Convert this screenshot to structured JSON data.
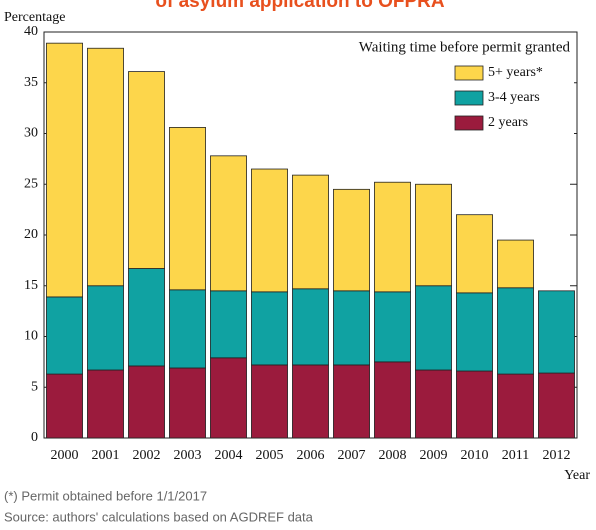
{
  "chart_data": {
    "type": "stacked_bar",
    "title": "of asylum application to OFPRA",
    "y_label": "Percentage",
    "x_label": "Year",
    "legend_title": "Waiting time before permit granted",
    "categories": [
      "2000",
      "2001",
      "2002",
      "2003",
      "2004",
      "2005",
      "2006",
      "2007",
      "2008",
      "2009",
      "2010",
      "2011",
      "2012"
    ],
    "series": [
      {
        "name": "2 years",
        "color": "#9b1b3d",
        "values": [
          6.3,
          6.7,
          7.1,
          6.9,
          7.9,
          7.2,
          7.2,
          7.2,
          7.5,
          6.7,
          6.6,
          6.3,
          6.4
        ]
      },
      {
        "name": "3-4 years",
        "color": "#10a2a2",
        "values": [
          7.6,
          8.3,
          9.6,
          7.7,
          6.6,
          7.2,
          7.5,
          7.3,
          6.9,
          8.3,
          7.7,
          8.5,
          8.1
        ]
      },
      {
        "name": "5+ years*",
        "color": "#fdd64b",
        "values": [
          25.0,
          23.4,
          19.4,
          16.0,
          13.3,
          12.1,
          11.2,
          10.0,
          10.8,
          10.0,
          7.7,
          4.7,
          null
        ]
      }
    ],
    "ylim": [
      0,
      40
    ],
    "yticks": [
      0,
      5,
      10,
      15,
      20,
      25,
      30,
      35,
      40
    ],
    "notes": [
      "(*) Permit obtained before 1/1/2017",
      "Source: authors' calculations based on AGDREF data"
    ]
  }
}
